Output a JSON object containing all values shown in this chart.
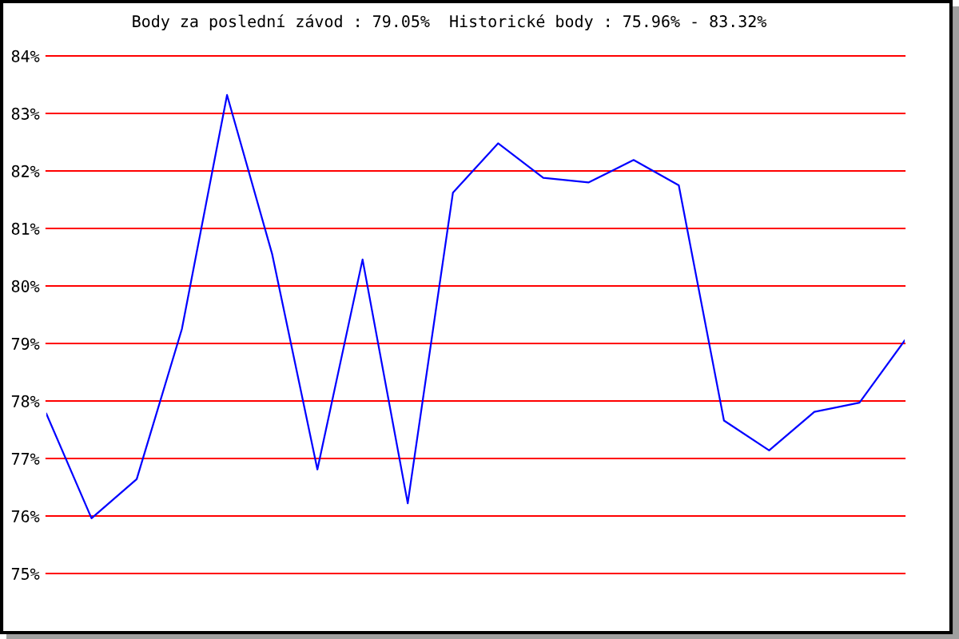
{
  "chart_data": {
    "type": "line",
    "title": "Body za poslední závod : 79.05%  Historické body : 75.96% - 83.32%",
    "categories": [
      null,
      null,
      null,
      null,
      null,
      null,
      null,
      null,
      null,
      null,
      null,
      null,
      null,
      null,
      null,
      null,
      null,
      null,
      null,
      null
    ],
    "values": [
      77.78,
      75.96,
      76.64,
      79.25,
      83.32,
      80.55,
      76.81,
      80.46,
      76.22,
      81.62,
      82.48,
      81.88,
      81.8,
      82.19,
      81.75,
      77.66,
      77.14,
      77.81,
      77.97,
      79.05
    ],
    "color": "#0000ff",
    "ylim": [
      75,
      84
    ],
    "yticks": [
      {
        "value": 75,
        "label": "75%"
      },
      {
        "value": 76,
        "label": "76%"
      },
      {
        "value": 77,
        "label": "77%"
      },
      {
        "value": 78,
        "label": "78%"
      },
      {
        "value": 79,
        "label": "79%"
      },
      {
        "value": 80,
        "label": "80%"
      },
      {
        "value": 81,
        "label": "81%"
      },
      {
        "value": 82,
        "label": "82%"
      },
      {
        "value": 83,
        "label": "83%"
      },
      {
        "value": 84,
        "label": "84%"
      }
    ],
    "grid": "y",
    "tick_labels": "y"
  }
}
